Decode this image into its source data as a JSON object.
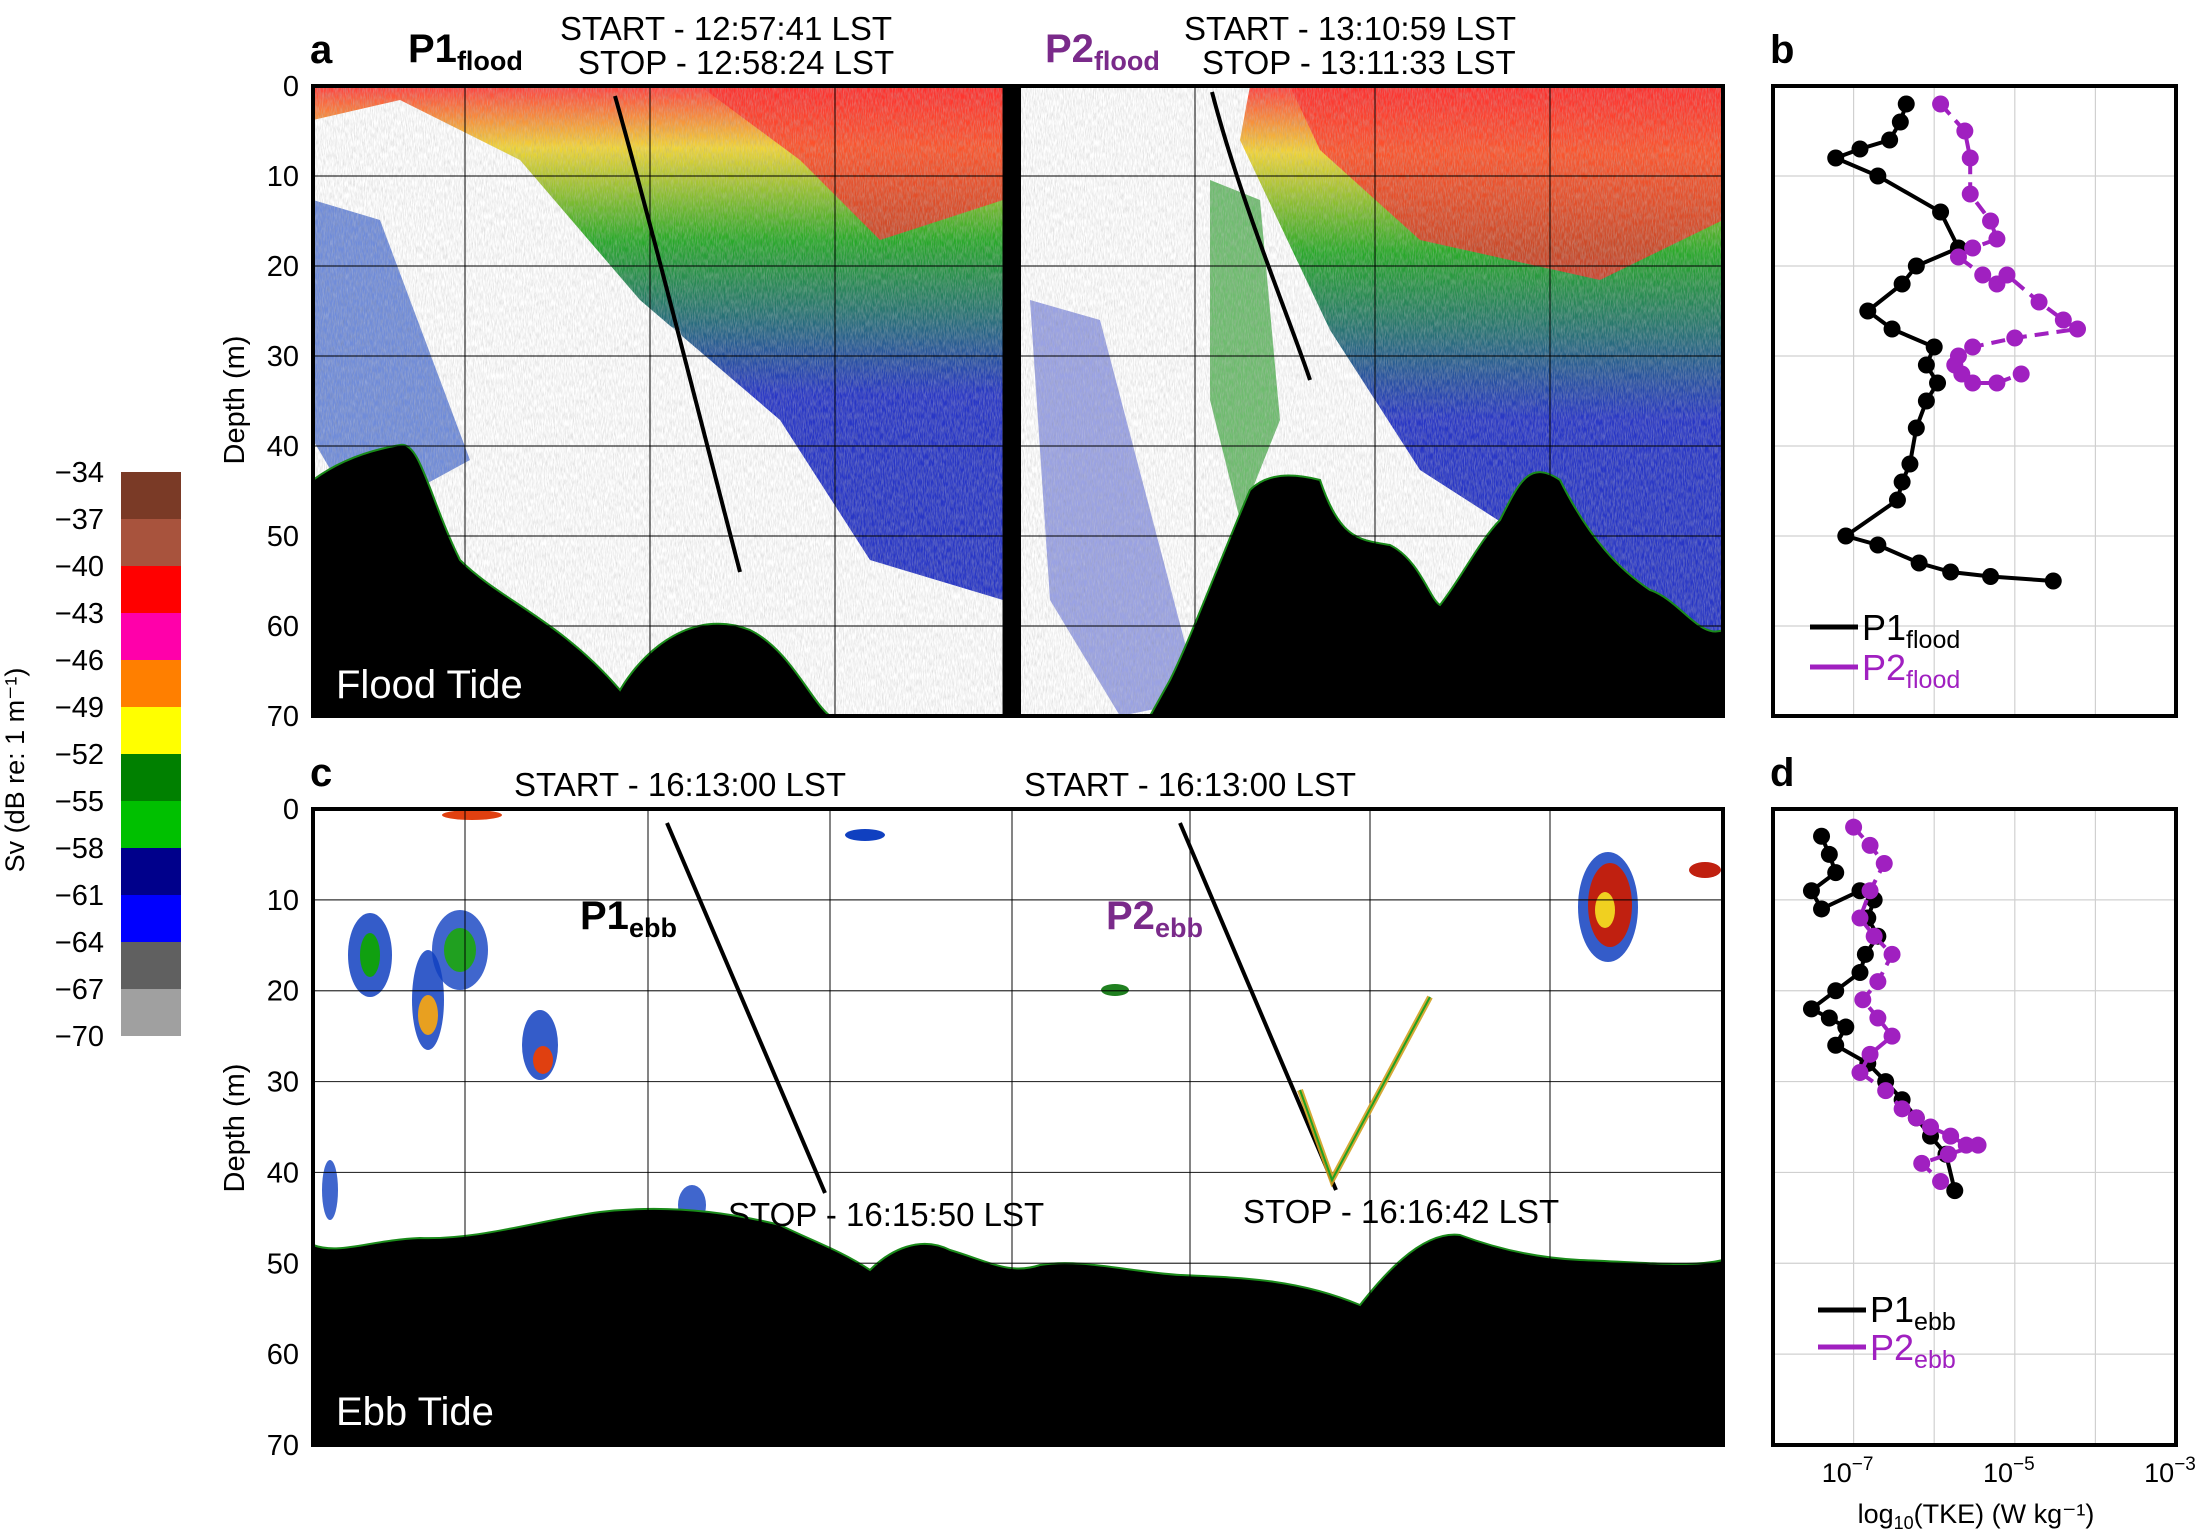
{
  "colorbar": {
    "label": "Sv (dB re: 1 m⁻¹)",
    "ticks": [
      "−34",
      "−37",
      "−40",
      "−43",
      "−46",
      "−49",
      "−52",
      "−55",
      "−58",
      "−61",
      "−64",
      "−67",
      "−70"
    ],
    "colors": [
      "#7a3a26",
      "#a8533d",
      "#ff0000",
      "#ff00aa",
      "#ff7f00",
      "#ffff00",
      "#008000",
      "#00c000",
      "#00008b",
      "#0000ff",
      "#606060",
      "#a0a0a0"
    ]
  },
  "panel_a": {
    "letter": "a",
    "p1": {
      "name": "P1",
      "sub": "flood",
      "start": "START - 12:57:41 LST",
      "stop": "STOP - 12:58:24 LST"
    },
    "p2": {
      "name": "P2",
      "sub": "flood",
      "start": "START - 13:10:59 LST",
      "stop": "STOP - 13:11:33 LST"
    },
    "y_ticks": [
      "0",
      "10",
      "20",
      "30",
      "40",
      "50",
      "60",
      "70"
    ],
    "ylabel": "Depth (m)",
    "tide_label": "Flood Tide"
  },
  "panel_b": {
    "letter": "b",
    "legend": [
      {
        "name": "P1",
        "sub": "flood",
        "color": "#000000"
      },
      {
        "name": "P2",
        "sub": "flood",
        "color": "#a020c0"
      }
    ]
  },
  "panel_c": {
    "letter": "c",
    "p1": {
      "name": "P1",
      "sub": "ebb",
      "start": "START - 16:13:00 LST",
      "stop": "STOP - 16:15:50 LST"
    },
    "p2": {
      "name": "P2",
      "sub": "ebb",
      "start": "START - 16:13:00 LST",
      "stop": "STOP - 16:16:42 LST"
    },
    "y_ticks": [
      "0",
      "10",
      "20",
      "30",
      "40",
      "50",
      "60",
      "70"
    ],
    "ylabel": "Depth (m)",
    "tide_label": "Ebb Tide"
  },
  "panel_d": {
    "letter": "d",
    "legend": [
      {
        "name": "P1",
        "sub": "ebb",
        "color": "#000000"
      },
      {
        "name": "P2",
        "sub": "ebb",
        "color": "#a020c0"
      }
    ],
    "x_ticks": [
      {
        "base": "10",
        "exp": "−7"
      },
      {
        "base": "10",
        "exp": "−5"
      },
      {
        "base": "10",
        "exp": "−3"
      }
    ],
    "xlabel_pre": "log",
    "xlabel_sub": "10",
    "xlabel_post": "(TKE) (W kg⁻¹)"
  },
  "chart_data": [
    {
      "type": "line",
      "panel": "b",
      "xscale": "log",
      "xlim": [
        1e-08,
        0.001
      ],
      "ylim": [
        70,
        0
      ],
      "series": [
        {
          "name": "P1flood",
          "color": "#000000",
          "x": [
            4.5e-07,
            3.8e-07,
            2.8e-07,
            1.2e-07,
            6e-08,
            2e-07,
            1.2e-06,
            2e-06,
            6e-07,
            4e-07,
            1.5e-07,
            3e-07,
            1e-06,
            8e-07,
            1.1e-06,
            8e-07,
            6e-07,
            5e-07,
            4e-07,
            3.5e-07,
            8e-08,
            2e-07,
            6.5e-07,
            1.6e-06,
            5e-06,
            3e-05
          ],
          "y": [
            2,
            4,
            6,
            7,
            8,
            10,
            14,
            18,
            20,
            22,
            25,
            27,
            29,
            31,
            33,
            35,
            38,
            42,
            44,
            46,
            50,
            51,
            53,
            54,
            54.5,
            55
          ]
        },
        {
          "name": "P2flood",
          "color": "#a020c0",
          "x": [
            1.2e-06,
            2.4e-06,
            2.8e-06,
            2.8e-06,
            5e-06,
            6e-06,
            3e-06,
            2e-06,
            4e-06,
            6e-06,
            8e-06,
            2e-05,
            4e-05,
            6e-05,
            1e-05,
            3e-06,
            2e-06,
            1.8e-06,
            2.2e-06,
            3e-06,
            6e-06,
            1.2e-05
          ],
          "y": [
            2,
            5,
            8,
            12,
            15,
            17,
            18,
            19,
            21,
            22,
            21,
            24,
            26,
            27,
            28,
            29,
            30,
            31,
            32,
            33,
            33,
            32
          ]
        }
      ]
    },
    {
      "type": "line",
      "panel": "d",
      "xscale": "log",
      "xlim": [
        1e-08,
        0.001
      ],
      "ylim": [
        70,
        0
      ],
      "series": [
        {
          "name": "P1ebb",
          "color": "#000000",
          "x": [
            4e-08,
            5e-08,
            6e-08,
            3e-08,
            4e-08,
            1.2e-07,
            1.8e-07,
            1.5e-07,
            2e-07,
            1.4e-07,
            1.2e-07,
            6e-08,
            3e-08,
            5e-08,
            8e-08,
            6e-08,
            1.5e-07,
            2.5e-07,
            4e-07,
            6e-07,
            9e-07,
            1.4e-06,
            1.8e-06
          ],
          "y": [
            3,
            5,
            7,
            9,
            11,
            9,
            10,
            12,
            14,
            16,
            18,
            20,
            22,
            23,
            24,
            26,
            28,
            30,
            32,
            34,
            36,
            38,
            42
          ]
        },
        {
          "name": "P2ebb",
          "color": "#a020c0",
          "x": [
            1e-07,
            1.6e-07,
            2.4e-07,
            1.6e-07,
            1.2e-07,
            1.8e-07,
            3e-07,
            2e-07,
            1.3e-07,
            2e-07,
            3e-07,
            1.6e-07,
            1.2e-07,
            2.5e-07,
            4e-07,
            6e-07,
            9e-07,
            1.6e-06,
            2.5e-06,
            3.5e-06,
            1.5e-06,
            7e-07,
            1.2e-06
          ],
          "y": [
            2,
            4,
            6,
            9,
            12,
            14,
            16,
            19,
            21,
            23,
            25,
            27,
            29,
            31,
            33,
            34,
            35,
            36,
            37,
            37,
            38,
            39,
            41
          ]
        }
      ]
    }
  ]
}
